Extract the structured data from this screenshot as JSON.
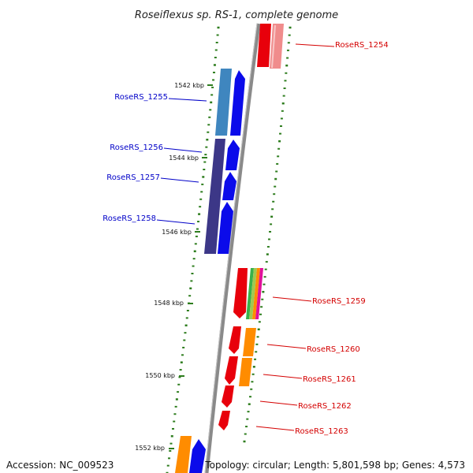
{
  "title": "Roseiflexus sp. RS-1, complete genome",
  "footer": {
    "accession": "Accession: NC_009523",
    "summary": "Topology: circular; Length: 5,801,598 bp; Genes: 4,573"
  },
  "colors": {
    "backbone": "#8a8a8a",
    "tick": "#2e7d1e",
    "gene_red": "#e8000b",
    "gene_red_light": "#f08c8c",
    "gene_blue": "#0b0bea",
    "gene_steel": "#3f86bf",
    "gene_slate": "#3c3787",
    "gene_orange": "#ff8c00",
    "label_red": "#d40000",
    "label_blue": "#0000c8"
  },
  "scale_labels": [
    {
      "id": "kbp-1542",
      "text": "1542 kbp"
    },
    {
      "id": "kbp-1544",
      "text": "1544 kbp"
    },
    {
      "id": "kbp-1546",
      "text": "1546 kbp"
    },
    {
      "id": "kbp-1548",
      "text": "1548 kbp"
    },
    {
      "id": "kbp-1550",
      "text": "1550 kbp"
    },
    {
      "id": "kbp-1552",
      "text": "1552 kbp"
    }
  ],
  "genes": [
    {
      "id": "RoseRS_1254",
      "label": "RoseRS_1254",
      "strand": "right",
      "color": "label_red"
    },
    {
      "id": "RoseRS_1255",
      "label": "RoseRS_1255",
      "strand": "left",
      "color": "label_blue"
    },
    {
      "id": "RoseRS_1256",
      "label": "RoseRS_1256",
      "strand": "left",
      "color": "label_blue"
    },
    {
      "id": "RoseRS_1257",
      "label": "RoseRS_1257",
      "strand": "left",
      "color": "label_blue"
    },
    {
      "id": "RoseRS_1258",
      "label": "RoseRS_1258",
      "strand": "left",
      "color": "label_blue"
    },
    {
      "id": "RoseRS_1259",
      "label": "RoseRS_1259",
      "strand": "right",
      "color": "label_red"
    },
    {
      "id": "RoseRS_1260",
      "label": "RoseRS_1260",
      "strand": "right",
      "color": "label_red"
    },
    {
      "id": "RoseRS_1261",
      "label": "RoseRS_1261",
      "strand": "right",
      "color": "label_red"
    },
    {
      "id": "RoseRS_1262",
      "label": "RoseRS_1262",
      "strand": "right",
      "color": "label_red"
    },
    {
      "id": "RoseRS_1263",
      "label": "RoseRS_1263",
      "strand": "right",
      "color": "label_red"
    }
  ]
}
